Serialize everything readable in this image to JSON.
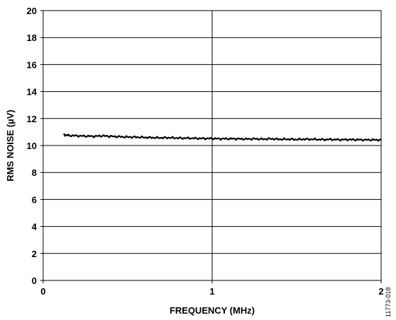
{
  "chart_data": {
    "type": "line",
    "xlabel": "FREQUENCY (MHz)",
    "ylabel": "RMS NOISE (µV)",
    "xlim": [
      0,
      2
    ],
    "ylim": [
      0,
      20
    ],
    "x_ticks": [
      "0",
      "1",
      "2"
    ],
    "y_ticks": [
      "0",
      "2",
      "4",
      "6",
      "8",
      "10",
      "12",
      "14",
      "16",
      "18",
      "20"
    ],
    "grid": "on",
    "series": [
      {
        "color": "#000000",
        "x": [
          0.12,
          0.15,
          0.2,
          0.25,
          0.3,
          0.35,
          0.4,
          0.45,
          0.5,
          0.55,
          0.6,
          0.65,
          0.7,
          0.75,
          0.8,
          0.85,
          0.9,
          0.95,
          1.0,
          1.05,
          1.1,
          1.15,
          1.2,
          1.25,
          1.3,
          1.35,
          1.4,
          1.45,
          1.5,
          1.55,
          1.6,
          1.65,
          1.7,
          1.75,
          1.8,
          1.85,
          1.9,
          1.95,
          2.0
        ],
        "y": [
          10.8,
          10.75,
          10.72,
          10.7,
          10.68,
          10.72,
          10.68,
          10.65,
          10.63,
          10.62,
          10.6,
          10.58,
          10.57,
          10.58,
          10.55,
          10.55,
          10.53,
          10.52,
          10.52,
          10.5,
          10.5,
          10.5,
          10.48,
          10.5,
          10.47,
          10.5,
          10.46,
          10.47,
          10.45,
          10.47,
          10.46,
          10.44,
          10.45,
          10.43,
          10.44,
          10.43,
          10.42,
          10.42,
          10.42
        ]
      }
    ]
  },
  "figure_id": "11773-018"
}
